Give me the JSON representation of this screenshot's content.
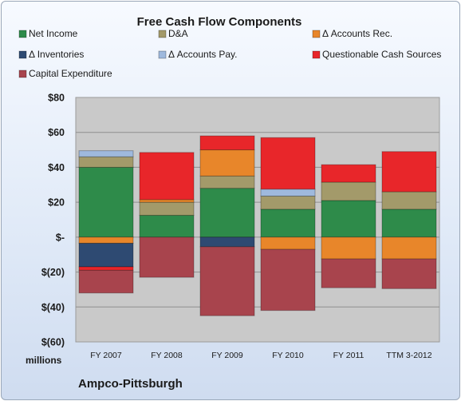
{
  "chart_data": {
    "type": "bar",
    "stacked": true,
    "title": "Free Cash Flow Components",
    "units_label": "millions",
    "company": "Ampco-Pittsburgh",
    "categories": [
      "FY 2007",
      "FY 2008",
      "FY 2009",
      "FY 2010",
      "FY 2011",
      "TTM 3-2012"
    ],
    "ylim": [
      -60,
      80
    ],
    "yticks": [
      80,
      60,
      40,
      20,
      0,
      -20,
      -40,
      -60
    ],
    "ytick_labels": [
      "$80",
      "$60",
      "$40",
      "$20",
      "$-",
      "$(20)",
      "$(40)",
      "$(60)"
    ],
    "grid": true,
    "legend_position": "top",
    "series": [
      {
        "name": "Net Income",
        "color": "#2e8b4a",
        "values": [
          40,
          12.5,
          28,
          16,
          21,
          16
        ]
      },
      {
        "name": "D&A",
        "color": "#a39a6a",
        "values": [
          6,
          7.5,
          7,
          7.5,
          10.5,
          10
        ]
      },
      {
        "name": "Δ Accounts Rec.",
        "color": "#e8862a",
        "values": [
          -3.5,
          1.5,
          15,
          -7,
          -12.5,
          -12.5
        ]
      },
      {
        "name": "Δ Inventories",
        "color": "#2e4a72",
        "values": [
          -13.5,
          0,
          -5.5,
          0,
          0,
          0
        ]
      },
      {
        "name": "Δ Accounts Pay.",
        "color": "#9fb9dd",
        "values": [
          3.5,
          0,
          0,
          4,
          0,
          0
        ]
      },
      {
        "name": "Questionable Cash Sources",
        "color": "#e8262a",
        "values": [
          -2,
          27,
          8,
          29.5,
          10,
          23
        ]
      },
      {
        "name": "Capital Expenditure",
        "color": "#a8444d",
        "values": [
          -13,
          -23,
          -39.5,
          -35,
          -16.5,
          -17
        ]
      }
    ]
  }
}
